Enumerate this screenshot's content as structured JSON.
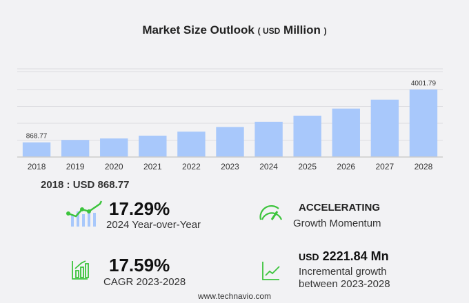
{
  "chart_data": {
    "type": "bar",
    "title": "Market Size Outlook",
    "unit_prefix": "USD",
    "unit": "Million",
    "categories": [
      "2018",
      "2019",
      "2020",
      "2021",
      "2022",
      "2023",
      "2024",
      "2025",
      "2026",
      "2027",
      "2028"
    ],
    "values": [
      868.77,
      1010,
      1100,
      1265,
      1505,
      1779.95,
      2087.7,
      2450,
      2870,
      3400,
      4001.79
    ],
    "data_labels": {
      "0": "868.77",
      "10": "4001.79"
    },
    "ylim": [
      0,
      5000
    ],
    "grid": true,
    "bar_color": "#a8c8fb"
  },
  "summary": {
    "base_year_label": "2018 : USD  868.77",
    "yoy_value": "17.29%",
    "yoy_label": "2024 Year-over-Year",
    "momentum_value": "ACCELERATING",
    "momentum_label": "Growth Momentum",
    "cagr_value": "17.59%",
    "cagr_label": "CAGR 2023-2028",
    "incr_prefix": "USD",
    "incr_value": "2221.84 Mn",
    "incr_label1": "Incremental growth",
    "incr_label2": "between 2023-2028"
  },
  "footer": "www.technavio.com",
  "colors": {
    "green": "#3cc43c",
    "blue": "#a8c8fb"
  }
}
